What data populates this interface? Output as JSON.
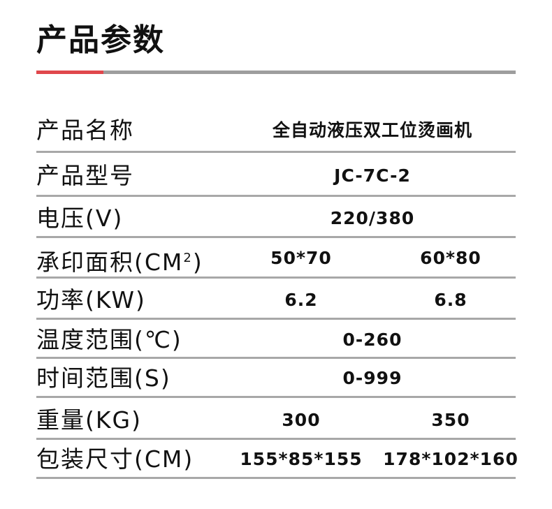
{
  "title": "产品参数",
  "colors": {
    "accent": "#e0474c",
    "rule": "#a8a8a8"
  },
  "specs": [
    {
      "label": "产品名称",
      "values": [
        "全自动液压双工位烫画机"
      ]
    },
    {
      "label": "产品型号",
      "values": [
        "JC-7C-2"
      ]
    },
    {
      "label": "电压(V)",
      "values": [
        "220/380"
      ]
    },
    {
      "label": "承印面积(CM",
      "label_sup": "2",
      "label_end": ")",
      "values": [
        "50*70",
        "60*80"
      ]
    },
    {
      "label": "功率(KW)",
      "values": [
        "6.2",
        "6.8"
      ]
    },
    {
      "label": "温度范围(℃)",
      "values": [
        "0-260"
      ]
    },
    {
      "label": "时间范围(S)",
      "values": [
        "0-999"
      ]
    },
    {
      "label": "重量(KG)",
      "values": [
        "300",
        "350"
      ]
    },
    {
      "label": "包装尺寸(CM)",
      "values": [
        "155*85*155",
        "178*102*160"
      ]
    }
  ]
}
